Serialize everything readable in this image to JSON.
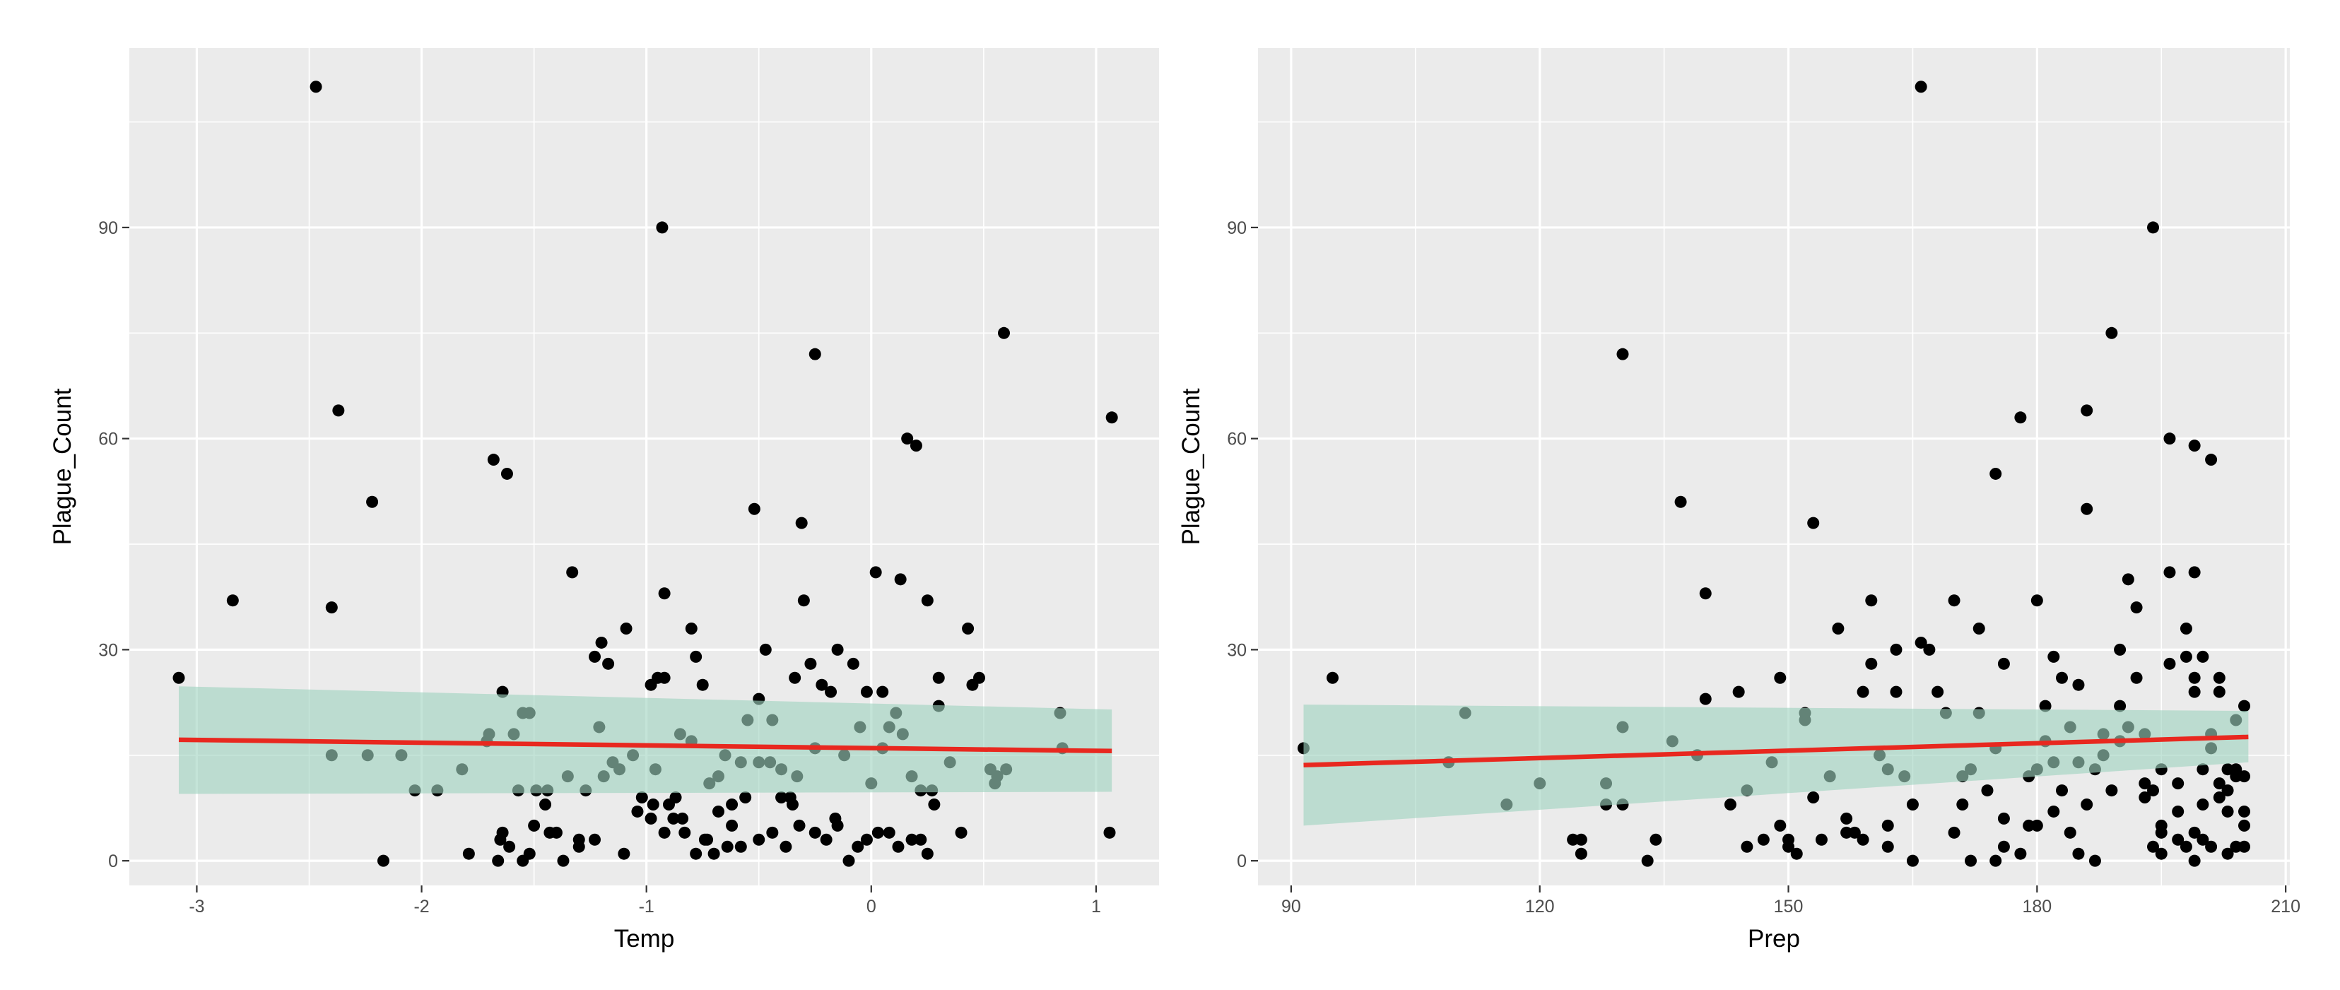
{
  "chart_data": [
    {
      "type": "scatter",
      "title": "",
      "xlabel": "Temp",
      "ylabel": "Plague_Count",
      "xlim": [
        -3.3,
        1.28
      ],
      "ylim": [
        -3.5,
        115.5
      ],
      "xticks": [
        -3,
        -2,
        -1,
        0,
        1
      ],
      "yticks": [
        0,
        30,
        60,
        90
      ],
      "xtick_labels": [
        "-3",
        "-2",
        "-1",
        "0",
        "1"
      ],
      "ytick_labels": [
        "0",
        "30",
        "60",
        "90"
      ],
      "grid": true,
      "legend": "none",
      "colors": {
        "panel": "#ebebeb",
        "grid": "#ffffff",
        "point": "#000000",
        "fit_line": "#e8281f",
        "ci_band": "#9fd3c0"
      },
      "fit": {
        "x": [
          -3.08,
          1.07
        ],
        "y": [
          17.2,
          15.6
        ]
      },
      "band": {
        "x": [
          -3.08,
          1.07
        ],
        "lower": [
          9.5,
          9.8
        ],
        "upper": [
          24.8,
          21.5
        ]
      },
      "points": [
        [
          -2.47,
          110
        ],
        [
          -3.08,
          26
        ],
        [
          -2.84,
          37
        ],
        [
          -2.37,
          64
        ],
        [
          -2.4,
          36
        ],
        [
          -2.22,
          51
        ],
        [
          -2.4,
          15
        ],
        [
          -2.24,
          15
        ],
        [
          -2.09,
          15
        ],
        [
          -2.17,
          0
        ],
        [
          -2.03,
          10
        ],
        [
          -1.93,
          10
        ],
        [
          -1.82,
          13
        ],
        [
          -1.79,
          1
        ],
        [
          -1.68,
          57
        ],
        [
          -1.62,
          55
        ],
        [
          -1.71,
          17
        ],
        [
          -1.7,
          18
        ],
        [
          -1.64,
          24
        ],
        [
          -1.59,
          18
        ],
        [
          -1.55,
          21
        ],
        [
          -1.52,
          21
        ],
        [
          -1.57,
          10
        ],
        [
          -1.65,
          3
        ],
        [
          -1.64,
          4
        ],
        [
          -1.61,
          2
        ],
        [
          -1.66,
          0
        ],
        [
          -1.49,
          10
        ],
        [
          -1.52,
          1
        ],
        [
          -1.55,
          0
        ],
        [
          -1.45,
          8
        ],
        [
          -1.43,
          4
        ],
        [
          -1.4,
          4
        ],
        [
          -1.37,
          0
        ],
        [
          -1.33,
          41
        ],
        [
          -1.23,
          29
        ],
        [
          -1.2,
          31
        ],
        [
          -1.17,
          28
        ],
        [
          -1.21,
          19
        ],
        [
          -1.27,
          10
        ],
        [
          -1.3,
          3
        ],
        [
          -1.23,
          3
        ],
        [
          -1.19,
          12
        ],
        [
          -1.12,
          13
        ],
        [
          -1.09,
          33
        ],
        [
          -1.06,
          15
        ],
        [
          -1.02,
          9
        ],
        [
          -0.98,
          25
        ],
        [
          -0.95,
          26
        ],
        [
          -0.92,
          26
        ],
        [
          -0.93,
          90
        ],
        [
          -0.92,
          38
        ],
        [
          -0.98,
          6
        ],
        [
          -0.97,
          8
        ],
        [
          -0.92,
          4
        ],
        [
          -0.88,
          6
        ],
        [
          -0.84,
          6
        ],
        [
          -0.8,
          33
        ],
        [
          -0.78,
          29
        ],
        [
          -0.75,
          25
        ],
        [
          -0.85,
          18
        ],
        [
          -0.8,
          17
        ],
        [
          -0.87,
          9
        ],
        [
          -0.83,
          4
        ],
        [
          -0.78,
          1
        ],
        [
          -0.73,
          3
        ],
        [
          -0.68,
          12
        ],
        [
          -0.65,
          15
        ],
        [
          -0.62,
          8
        ],
        [
          -0.56,
          9
        ],
        [
          -0.52,
          50
        ],
        [
          -0.5,
          23
        ],
        [
          -0.47,
          30
        ],
        [
          -0.44,
          20
        ],
        [
          -0.4,
          9
        ],
        [
          -0.36,
          9
        ],
        [
          -0.34,
          26
        ],
        [
          -0.31,
          48
        ],
        [
          -0.3,
          37
        ],
        [
          -0.25,
          72
        ],
        [
          -0.27,
          28
        ],
        [
          -0.25,
          16
        ],
        [
          -0.22,
          25
        ],
        [
          -0.18,
          24
        ],
        [
          -0.15,
          30
        ],
        [
          -0.12,
          15
        ],
        [
          -0.08,
          28
        ],
        [
          -0.05,
          19
        ],
        [
          -0.02,
          24
        ],
        [
          0.02,
          41
        ],
        [
          0.05,
          24
        ],
        [
          0.08,
          19
        ],
        [
          0.11,
          21
        ],
        [
          0.13,
          40
        ],
        [
          0.16,
          60
        ],
        [
          0.2,
          59
        ],
        [
          0.18,
          12
        ],
        [
          0.22,
          10
        ],
        [
          0.25,
          37
        ],
        [
          0.27,
          10
        ],
        [
          0.3,
          22
        ],
        [
          0.3,
          26
        ],
        [
          0.25,
          1
        ],
        [
          0.22,
          3
        ],
        [
          0.18,
          3
        ],
        [
          0.12,
          2
        ],
        [
          0.08,
          4
        ],
        [
          0.03,
          4
        ],
        [
          -0.02,
          3
        ],
        [
          -0.06,
          2
        ],
        [
          -0.1,
          0
        ],
        [
          -0.15,
          5
        ],
        [
          -0.2,
          3
        ],
        [
          -0.25,
          4
        ],
        [
          -0.32,
          5
        ],
        [
          -0.38,
          2
        ],
        [
          -0.44,
          4
        ],
        [
          -0.5,
          3
        ],
        [
          -0.58,
          2
        ],
        [
          -0.64,
          2
        ],
        [
          -0.7,
          1
        ],
        [
          -0.74,
          3
        ],
        [
          -0.45,
          14
        ],
        [
          -0.4,
          13
        ],
        [
          -0.35,
          8
        ],
        [
          -0.5,
          14
        ],
        [
          0.35,
          14
        ],
        [
          0.4,
          4
        ],
        [
          0.43,
          33
        ],
        [
          0.45,
          25
        ],
        [
          0.48,
          26
        ],
        [
          0.53,
          13
        ],
        [
          0.56,
          12
        ],
        [
          0.59,
          75
        ],
        [
          0.6,
          13
        ],
        [
          0.55,
          11
        ],
        [
          0.84,
          21
        ],
        [
          0.85,
          16
        ],
        [
          1.07,
          63
        ],
        [
          1.06,
          4
        ],
        [
          -0.62,
          5
        ],
        [
          -0.58,
          14
        ],
        [
          -0.55,
          20
        ],
        [
          -0.68,
          7
        ],
        [
          -0.96,
          13
        ],
        [
          -1.04,
          7
        ],
        [
          -1.1,
          1
        ],
        [
          -1.35,
          12
        ],
        [
          -1.44,
          10
        ],
        [
          -1.5,
          5
        ],
        [
          -1.3,
          2
        ],
        [
          -1.15,
          14
        ],
        [
          -0.9,
          8
        ],
        [
          -0.72,
          11
        ],
        [
          -0.33,
          12
        ],
        [
          -0.16,
          6
        ],
        [
          0.0,
          11
        ],
        [
          0.05,
          16
        ],
        [
          0.14,
          18
        ],
        [
          0.28,
          8
        ]
      ]
    },
    {
      "type": "scatter",
      "title": "",
      "xlabel": "Prep",
      "ylabel": "Plague_Count",
      "xlim": [
        86.0,
        210.5
      ],
      "ylim": [
        -3.5,
        115.5
      ],
      "xticks": [
        90,
        120,
        150,
        180,
        210
      ],
      "yticks": [
        0,
        30,
        60,
        90
      ],
      "xtick_labels": [
        "90",
        "120",
        "150",
        "180",
        "210"
      ],
      "ytick_labels": [
        "0",
        "30",
        "60",
        "90"
      ],
      "grid": true,
      "legend": "none",
      "colors": {
        "panel": "#ebebeb",
        "grid": "#ffffff",
        "point": "#000000",
        "fit_line": "#e8281f",
        "ci_band": "#9fd3c0"
      },
      "fit": {
        "x": [
          91.5,
          205.5
        ],
        "y": [
          13.6,
          17.6
        ]
      },
      "band": {
        "x": [
          91.5,
          205.5
        ],
        "lower": [
          5.0,
          14.0
        ],
        "upper": [
          22.2,
          21.3
        ]
      },
      "points": [
        [
          91.5,
          16
        ],
        [
          95,
          26
        ],
        [
          109,
          14
        ],
        [
          111,
          21
        ],
        [
          116,
          8
        ],
        [
          120,
          11
        ],
        [
          125,
          3
        ],
        [
          124,
          3
        ],
        [
          125,
          1
        ],
        [
          128,
          8
        ],
        [
          128,
          11
        ],
        [
          130,
          19
        ],
        [
          130,
          8
        ],
        [
          130,
          72
        ],
        [
          133,
          0
        ],
        [
          134,
          3
        ],
        [
          136,
          17
        ],
        [
          137,
          51
        ],
        [
          139,
          15
        ],
        [
          140,
          38
        ],
        [
          140,
          23
        ],
        [
          143,
          8
        ],
        [
          144,
          24
        ],
        [
          145,
          2
        ],
        [
          145,
          10
        ],
        [
          147,
          3
        ],
        [
          148,
          14
        ],
        [
          149,
          5
        ],
        [
          149,
          26
        ],
        [
          150,
          2
        ],
        [
          150,
          3
        ],
        [
          151,
          1
        ],
        [
          152,
          21
        ],
        [
          153,
          48
        ],
        [
          152,
          20
        ],
        [
          153,
          9
        ],
        [
          154,
          3
        ],
        [
          155,
          12
        ],
        [
          156,
          33
        ],
        [
          157,
          6
        ],
        [
          157,
          4
        ],
        [
          158,
          4
        ],
        [
          159,
          3
        ],
        [
          159,
          24
        ],
        [
          160,
          37
        ],
        [
          160,
          28
        ],
        [
          161,
          15
        ],
        [
          162,
          13
        ],
        [
          162,
          5
        ],
        [
          162,
          2
        ],
        [
          163,
          24
        ],
        [
          163,
          30
        ],
        [
          164,
          12
        ],
        [
          165,
          8
        ],
        [
          165,
          0
        ],
        [
          166,
          31
        ],
        [
          166,
          110
        ],
        [
          167,
          30
        ],
        [
          168,
          24
        ],
        [
          169,
          21
        ],
        [
          170,
          37
        ],
        [
          170,
          4
        ],
        [
          171,
          8
        ],
        [
          171,
          12
        ],
        [
          172,
          13
        ],
        [
          172,
          0
        ],
        [
          173,
          33
        ],
        [
          173,
          21
        ],
        [
          174,
          10
        ],
        [
          175,
          0
        ],
        [
          175,
          55
        ],
        [
          175,
          16
        ],
        [
          176,
          2
        ],
        [
          176,
          28
        ],
        [
          176,
          6
        ],
        [
          178,
          63
        ],
        [
          178,
          1
        ],
        [
          179,
          5
        ],
        [
          179,
          12
        ],
        [
          180,
          37
        ],
        [
          180,
          13
        ],
        [
          180,
          5
        ],
        [
          181,
          22
        ],
        [
          181,
          17
        ],
        [
          182,
          29
        ],
        [
          182,
          7
        ],
        [
          182,
          14
        ],
        [
          183,
          26
        ],
        [
          183,
          10
        ],
        [
          184,
          4
        ],
        [
          184,
          19
        ],
        [
          185,
          14
        ],
        [
          185,
          25
        ],
        [
          185,
          1
        ],
        [
          186,
          64
        ],
        [
          186,
          50
        ],
        [
          186,
          8
        ],
        [
          187,
          0
        ],
        [
          187,
          13
        ],
        [
          188,
          15
        ],
        [
          188,
          18
        ],
        [
          189,
          75
        ],
        [
          189,
          10
        ],
        [
          190,
          17
        ],
        [
          190,
          22
        ],
        [
          190,
          30
        ],
        [
          191,
          40
        ],
        [
          191,
          19
        ],
        [
          192,
          36
        ],
        [
          192,
          26
        ],
        [
          193,
          11
        ],
        [
          193,
          18
        ],
        [
          193,
          9
        ],
        [
          194,
          10
        ],
        [
          194,
          2
        ],
        [
          194,
          90
        ],
        [
          195,
          13
        ],
        [
          195,
          5
        ],
        [
          195,
          4
        ],
        [
          195,
          1
        ],
        [
          196,
          60
        ],
        [
          196,
          28
        ],
        [
          196,
          41
        ],
        [
          197,
          3
        ],
        [
          197,
          7
        ],
        [
          197,
          11
        ],
        [
          198,
          33
        ],
        [
          198,
          29
        ],
        [
          198,
          2
        ],
        [
          199,
          41
        ],
        [
          199,
          59
        ],
        [
          199,
          24
        ],
        [
          199,
          26
        ],
        [
          199,
          4
        ],
        [
          199,
          0
        ],
        [
          200,
          13
        ],
        [
          200,
          29
        ],
        [
          200,
          8
        ],
        [
          200,
          3
        ],
        [
          201,
          57
        ],
        [
          201,
          16
        ],
        [
          201,
          2
        ],
        [
          202,
          26
        ],
        [
          202,
          9
        ],
        [
          202,
          24
        ],
        [
          203,
          13
        ],
        [
          203,
          10
        ],
        [
          203,
          1
        ],
        [
          204,
          20
        ],
        [
          204,
          13
        ],
        [
          204,
          2
        ],
        [
          205,
          22
        ],
        [
          205,
          12
        ],
        [
          205,
          7
        ],
        [
          205,
          5
        ],
        [
          205,
          2
        ],
        [
          204,
          12
        ],
        [
          203,
          7
        ],
        [
          202,
          11
        ],
        [
          201,
          18
        ]
      ]
    }
  ]
}
